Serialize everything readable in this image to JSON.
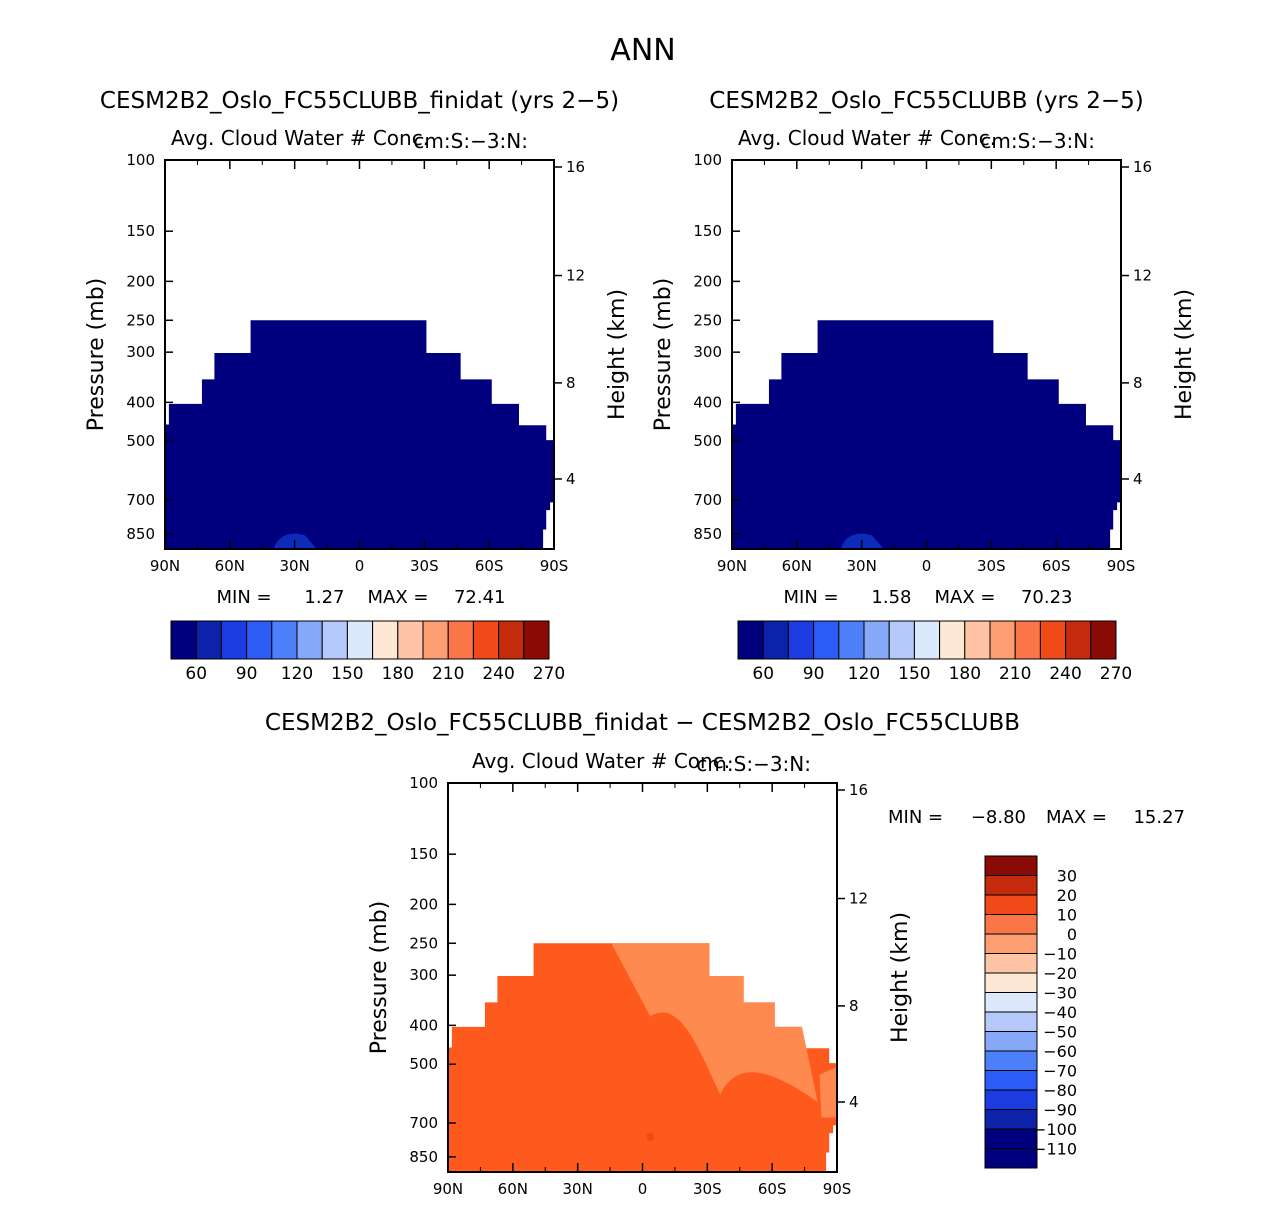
{
  "page_title": "ANN",
  "colors": {
    "control_fill": "#00007f",
    "control_low": "#0b2bb8",
    "diff_fill": "#ff5a1e",
    "diff_high": "#f24a12",
    "diff_low": "#ff8a50",
    "control_palette": [
      "#00007f",
      "#0c22a8",
      "#1b3ce0",
      "#2d5bf5",
      "#4d80f8",
      "#86a8f9",
      "#b5cafa",
      "#dce8fb",
      "#fde7d5",
      "#fdc5a6",
      "#fc9e72",
      "#fa7646",
      "#f04a18",
      "#c42a0c",
      "#8a0a05"
    ],
    "diff_palette": [
      "#00007f",
      "#0c22a8",
      "#1b3ce0",
      "#2d5bf5",
      "#4d80f8",
      "#86a8f9",
      "#b5cafa",
      "#dce8fb",
      "#fde7d5",
      "#fdc5a6",
      "#fc9e72",
      "#fa7646",
      "#f04a18",
      "#c42a0c",
      "#8a0a05"
    ]
  },
  "chart_data": [
    {
      "type": "heatmap",
      "title": "CESM2B2_Oslo_FC55CLUBB_finidat (yrs 2-5)",
      "subtitle": "Avg. Cloud Water # Conc.",
      "units": "cm:S:-3:N:",
      "xlabel": "",
      "ylabel": "Pressure (mb)",
      "ylabel_right": "Height (km)",
      "x_ticks": [
        "90N",
        "60N",
        "30N",
        "0",
        "30S",
        "60S",
        "90S"
      ],
      "y_ticks": [
        "100",
        "150",
        "200",
        "250",
        "300",
        "400",
        "500",
        "700",
        "850"
      ],
      "y_ticks_right": [
        "16",
        "12",
        "8",
        "4"
      ],
      "min_label": "MIN =",
      "min_value": "1.27",
      "max_label": "MAX =",
      "max_value": "72.41",
      "colorbar_labels": [
        "60",
        "90",
        "120",
        "150",
        "180",
        "210",
        "240",
        "270"
      ]
    },
    {
      "type": "heatmap",
      "title": "CESM2B2_Oslo_FC55CLUBB (yrs 2-5)",
      "subtitle": "Avg. Cloud Water # Conc.",
      "units": "cm:S:-3:N:",
      "xlabel": "",
      "ylabel": "Pressure (mb)",
      "ylabel_right": "Height (km)",
      "x_ticks": [
        "90N",
        "60N",
        "30N",
        "0",
        "30S",
        "60S",
        "90S"
      ],
      "y_ticks": [
        "100",
        "150",
        "200",
        "250",
        "300",
        "400",
        "500",
        "700",
        "850"
      ],
      "y_ticks_right": [
        "16",
        "12",
        "8",
        "4"
      ],
      "min_label": "MIN =",
      "min_value": "1.58",
      "max_label": "MAX =",
      "max_value": "70.23",
      "colorbar_labels": [
        "60",
        "90",
        "120",
        "150",
        "180",
        "210",
        "240",
        "270"
      ]
    },
    {
      "type": "heatmap",
      "title": "CESM2B2_Oslo_FC55CLUBB_finidat - CESM2B2_Oslo_FC55CLUBB",
      "subtitle": "Avg. Cloud Water # Conc.",
      "units": "cm:S:-3:N:",
      "xlabel": "",
      "ylabel": "Pressure (mb)",
      "ylabel_right": "Height (km)",
      "x_ticks": [
        "90N",
        "60N",
        "30N",
        "0",
        "30S",
        "60S",
        "90S"
      ],
      "y_ticks": [
        "100",
        "150",
        "200",
        "250",
        "300",
        "400",
        "500",
        "700",
        "850"
      ],
      "y_ticks_right": [
        "16",
        "12",
        "8",
        "4"
      ],
      "min_label": "MIN =",
      "min_value": "-8.80",
      "max_label": "MAX =",
      "max_value": "15.27",
      "colorbar_labels": [
        "30",
        "20",
        "10",
        "0",
        "-10",
        "-20",
        "-30",
        "-40",
        "-50",
        "-60",
        "-70",
        "-80",
        "-90",
        "-100",
        "-110"
      ]
    }
  ]
}
